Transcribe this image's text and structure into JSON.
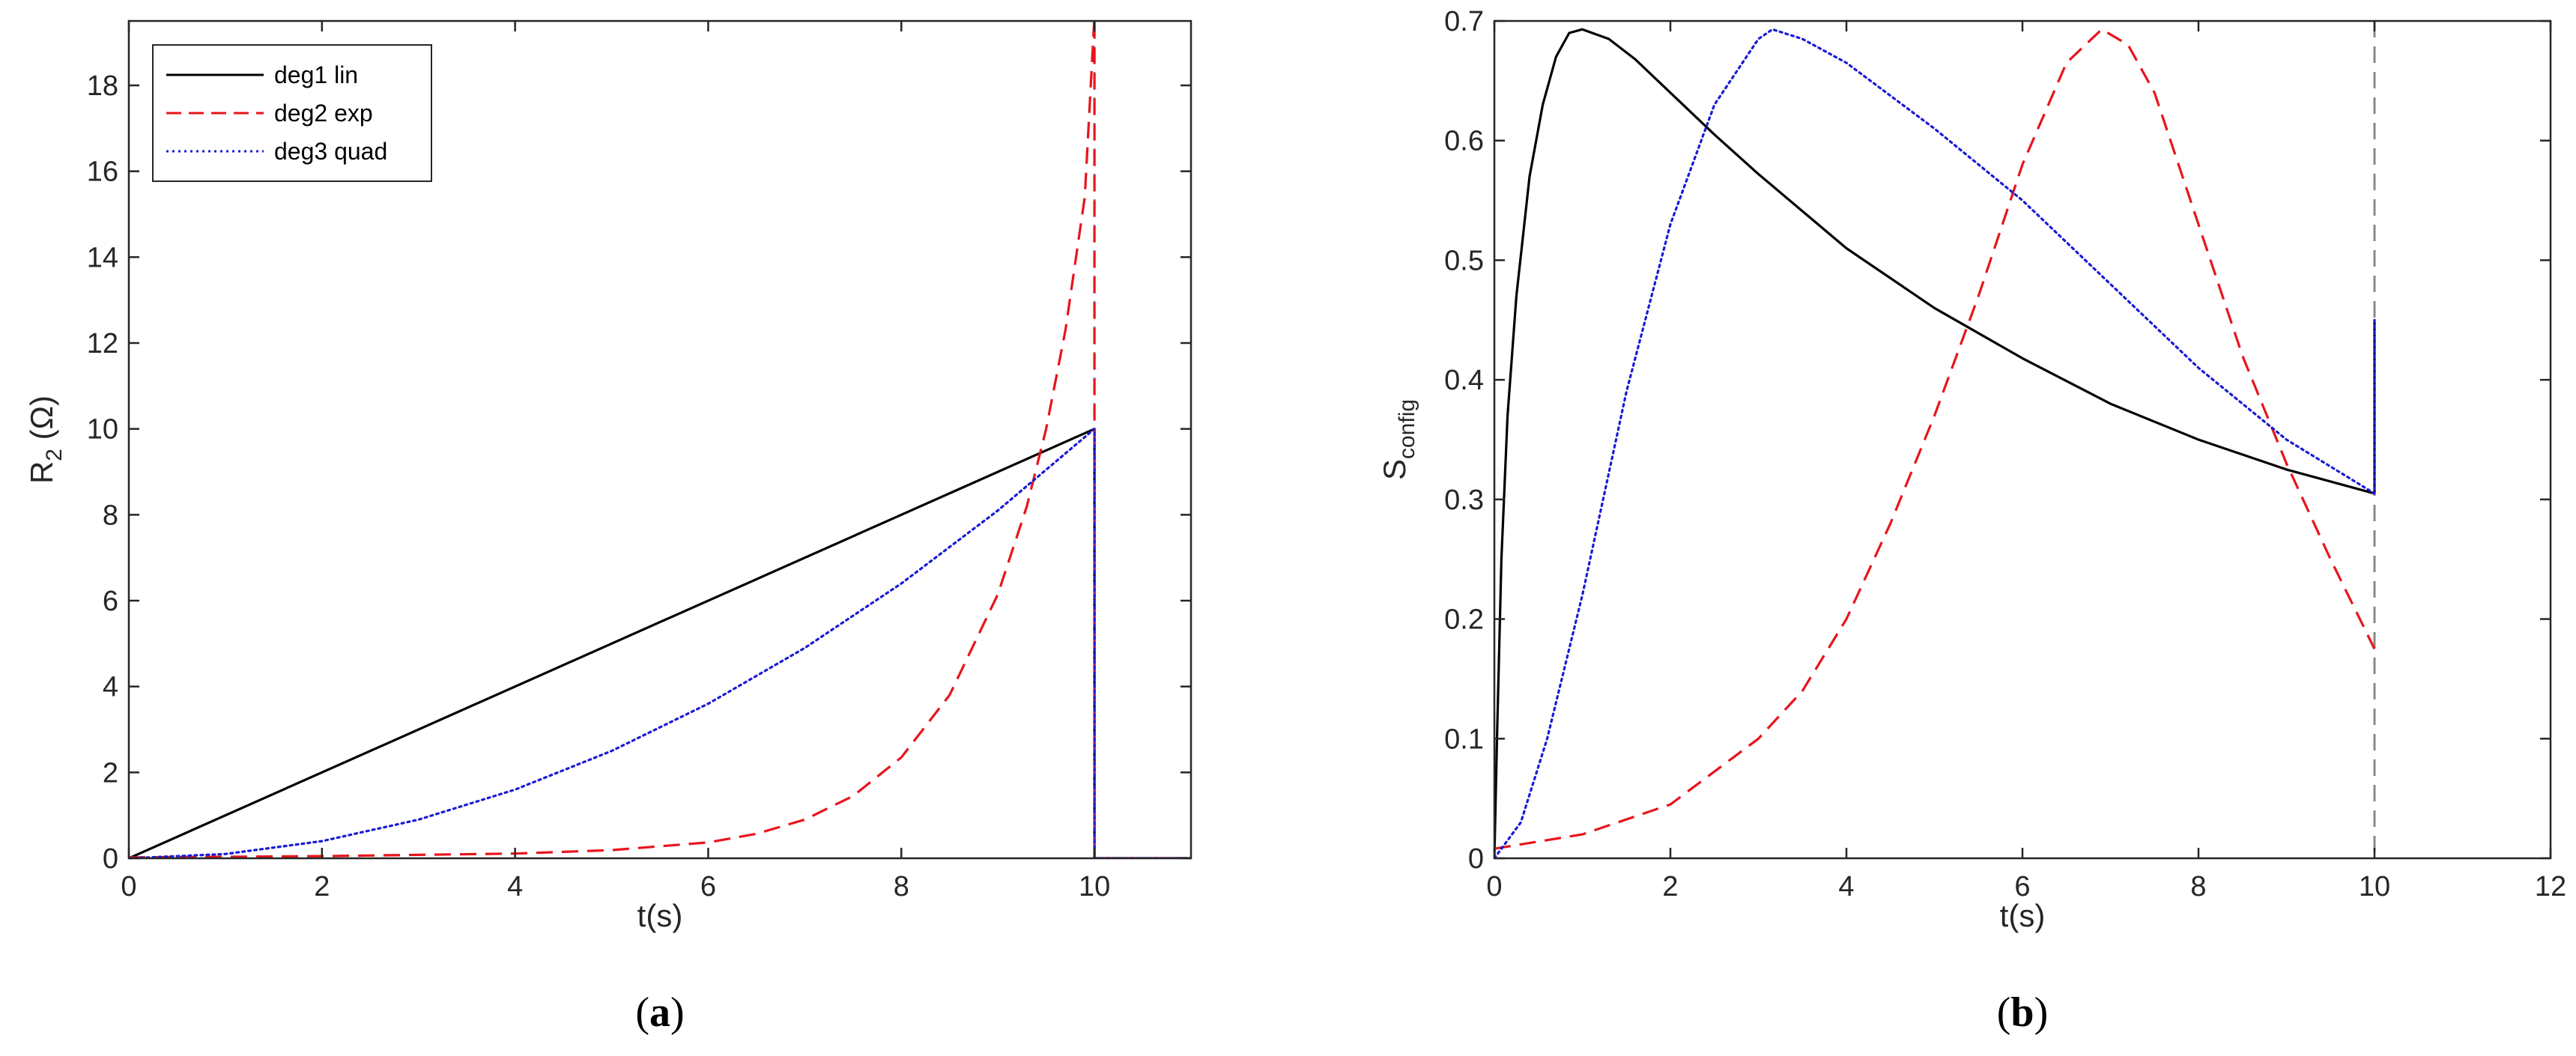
{
  "chart_data": [
    {
      "type": "line",
      "panel_label": "(a)",
      "xlabel": "t(s)",
      "ylabel": {
        "main": "R",
        "sub": "2",
        "rest": " (Ω)"
      },
      "xlim": [
        0,
        11
      ],
      "ylim": [
        0,
        19.5
      ],
      "xticks": [
        0,
        2,
        4,
        6,
        8,
        10
      ],
      "yticks": [
        0,
        2,
        4,
        6,
        8,
        10,
        12,
        14,
        16,
        18
      ],
      "grid": false,
      "legend_position": "top-left",
      "vline": {
        "x": 10,
        "color": "#888888",
        "dash": "dashed"
      },
      "series": [
        {
          "name": "deg1 lin",
          "color": "#000000",
          "style": "solid",
          "x": [
            0,
            10,
            10,
            11
          ],
          "y": [
            0,
            10,
            0,
            0
          ]
        },
        {
          "name": "deg2 exp",
          "color": "#e8141c",
          "style": "dashed",
          "x": [
            0,
            2,
            4,
            5,
            6,
            6.5,
            7,
            7.5,
            8,
            8.5,
            9,
            9.3,
            9.5,
            9.7,
            9.9,
            10,
            10,
            10,
            11
          ],
          "y": [
            0.02,
            0.05,
            0.11,
            0.19,
            0.37,
            0.57,
            0.9,
            1.45,
            2.35,
            3.8,
            6.15,
            8.2,
            10,
            12.3,
            15.4,
            19.6,
            11,
            0,
            0
          ]
        },
        {
          "name": "deg3 quad",
          "color": "#1a1ad6",
          "style": "dotted",
          "x": [
            0,
            1,
            2,
            3,
            4,
            5,
            6,
            7,
            8,
            9,
            10,
            10,
            11
          ],
          "y": [
            0,
            0.1,
            0.4,
            0.9,
            1.6,
            2.5,
            3.6,
            4.9,
            6.4,
            8.1,
            10,
            0,
            0
          ]
        }
      ]
    },
    {
      "type": "line",
      "panel_label": "(b)",
      "xlabel": "t(s)",
      "ylabel": {
        "main": "S",
        "sub": "config",
        "rest": ""
      },
      "xlim": [
        0,
        12
      ],
      "ylim": [
        0,
        0.7
      ],
      "xticks": [
        0,
        2,
        4,
        6,
        8,
        10,
        12
      ],
      "yticks": [
        0,
        0.1,
        0.2,
        0.3,
        0.4,
        0.5,
        0.6,
        0.7
      ],
      "grid": false,
      "vline": {
        "x": 10,
        "color": "#888888",
        "dash": "dashed"
      },
      "series": [
        {
          "name": "deg1 lin",
          "color": "#000000",
          "style": "solid",
          "x": [
            0,
            0.03,
            0.08,
            0.15,
            0.25,
            0.4,
            0.55,
            0.7,
            0.85,
            1,
            1.3,
            1.6,
            2,
            2.5,
            3,
            4,
            5,
            6,
            7,
            8,
            9,
            10,
            10
          ],
          "y": [
            0,
            0.1,
            0.25,
            0.37,
            0.47,
            0.57,
            0.63,
            0.67,
            0.69,
            0.693,
            0.685,
            0.668,
            0.64,
            0.605,
            0.572,
            0.51,
            0.46,
            0.418,
            0.38,
            0.35,
            0.325,
            0.305,
            0.45
          ]
        },
        {
          "name": "deg2 exp",
          "color": "#e8141c",
          "style": "dashed",
          "x": [
            0,
            1,
            2,
            3,
            3.5,
            4,
            4.5,
            5,
            5.5,
            6,
            6.5,
            6.9,
            7.2,
            7.5,
            8,
            8.5,
            9,
            9.5,
            10
          ],
          "y": [
            0.008,
            0.02,
            0.045,
            0.1,
            0.14,
            0.2,
            0.28,
            0.37,
            0.47,
            0.58,
            0.665,
            0.693,
            0.68,
            0.64,
            0.53,
            0.42,
            0.33,
            0.25,
            0.175
          ]
        },
        {
          "name": "deg3 quad",
          "color": "#1a1ad6",
          "style": "dotted",
          "x": [
            0,
            0.3,
            0.6,
            1,
            1.5,
            2,
            2.5,
            3,
            3.16,
            3.5,
            4,
            5,
            6,
            7,
            8,
            9,
            10,
            10
          ],
          "y": [
            0,
            0.03,
            0.1,
            0.22,
            0.39,
            0.53,
            0.63,
            0.685,
            0.693,
            0.685,
            0.665,
            0.61,
            0.55,
            0.48,
            0.41,
            0.35,
            0.305,
            0.45
          ]
        }
      ]
    }
  ]
}
